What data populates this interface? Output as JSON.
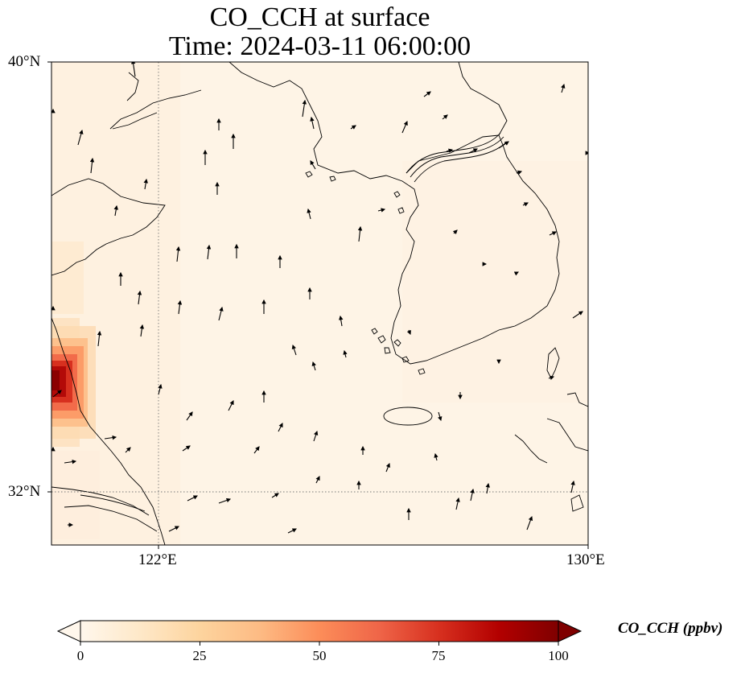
{
  "title": {
    "line1": "CO_CCH at surface",
    "line2": "Time: 2024-03-11 06:00:00"
  },
  "axes": {
    "lat_labels": [
      "40°N",
      "32°N"
    ],
    "lon_labels": [
      "122°E",
      "130°E"
    ],
    "lon_range": [
      120,
      130
    ],
    "lat_range": [
      31,
      40
    ]
  },
  "colorbar": {
    "label": "CO_CCH (ppbv)",
    "ticks": [
      "0",
      "25",
      "50",
      "75",
      "100"
    ],
    "range": [
      0,
      100
    ],
    "colormap": "OrRd",
    "colors": [
      "#fff7ec",
      "#fee8c8",
      "#fdd49e",
      "#fdbb84",
      "#fc8d59",
      "#ef6548",
      "#d7301f",
      "#b30000",
      "#7f0000"
    ]
  },
  "gridlines": {
    "lon": 122,
    "lat": 32,
    "style": "dotted"
  },
  "field_note": "low background; elevated plume near west edge around 33-34N"
}
